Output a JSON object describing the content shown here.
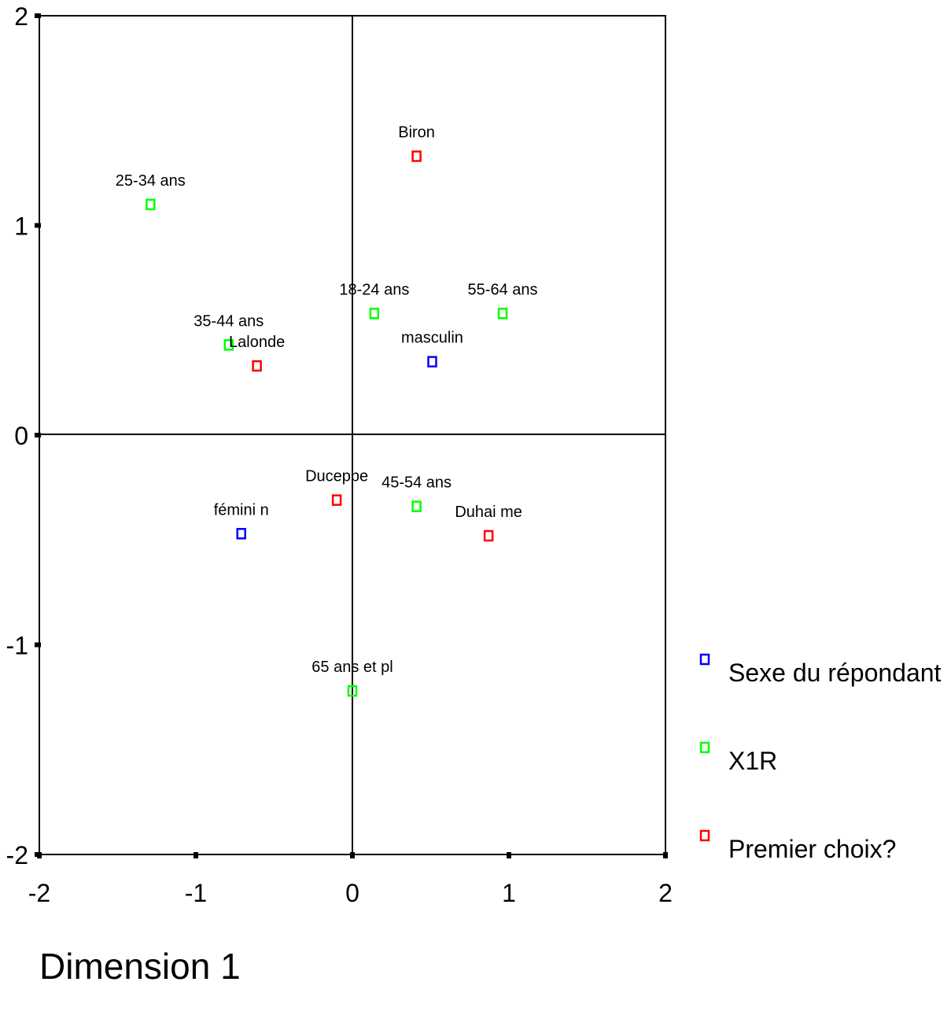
{
  "chart_data": {
    "type": "scatter",
    "title": "",
    "xlabel": "Dimension 1",
    "ylabel": "",
    "xlim": [
      -2,
      2
    ],
    "ylim": [
      -2,
      2
    ],
    "x_ticks": [
      "-2",
      "-1",
      "0",
      "1",
      "2"
    ],
    "y_ticks": [
      "2",
      "1",
      "0",
      "-1",
      "-2"
    ],
    "reference_lines": {
      "x": 0,
      "y": 0
    },
    "legend_position": "right",
    "series": [
      {
        "name": "Sexe du répondant",
        "color": "#0000ff",
        "points": [
          {
            "label": "masculin",
            "x": 0.51,
            "y": 0.35
          },
          {
            "label": "fémini n",
            "x": -0.71,
            "y": -0.47
          }
        ]
      },
      {
        "name": "X1R",
        "color": "#00ff00",
        "points": [
          {
            "label": "25-34 ans",
            "x": -1.29,
            "y": 1.1
          },
          {
            "label": "18-24 ans",
            "x": 0.14,
            "y": 0.58
          },
          {
            "label": "55-64 ans",
            "x": 0.96,
            "y": 0.58
          },
          {
            "label": "35-44 ans",
            "x": -0.79,
            "y": 0.43
          },
          {
            "label": "45-54 ans",
            "x": 0.41,
            "y": -0.34
          },
          {
            "label": "65 ans et pl",
            "x": 0.0,
            "y": -1.22
          }
        ]
      },
      {
        "name": "Premier choix?",
        "color": "#ff0000",
        "points": [
          {
            "label": "Biron",
            "x": 0.41,
            "y": 1.33
          },
          {
            "label": "Lalonde",
            "x": -0.61,
            "y": 0.33
          },
          {
            "label": "Ducepbe",
            "x": -0.1,
            "y": -0.31
          },
          {
            "label": "Duhai me",
            "x": 0.87,
            "y": -0.48
          }
        ]
      }
    ]
  }
}
